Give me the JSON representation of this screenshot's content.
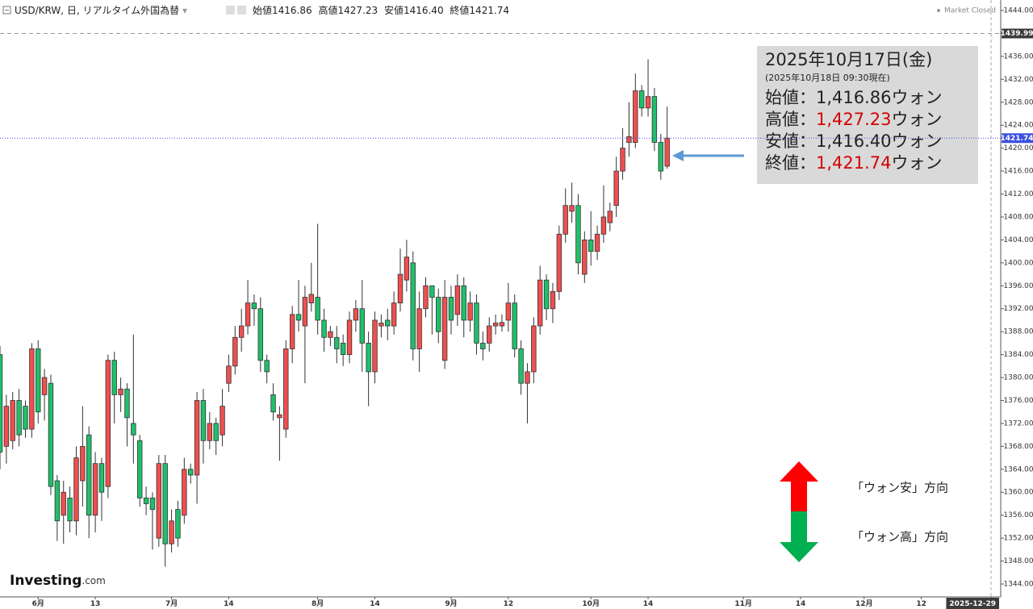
{
  "chart_data": {
    "type": "candlestick",
    "categories": [
      null,
      null,
      null,
      null,
      null,
      null,
      "6月",
      null,
      null,
      null,
      null,
      null,
      null,
      null,
      null,
      "13",
      null,
      null,
      null,
      null,
      null,
      null,
      null,
      null,
      null,
      null,
      null,
      "7月",
      null,
      null,
      null,
      null,
      null,
      null,
      null,
      null,
      "14",
      null,
      null,
      null,
      null,
      null,
      null,
      null,
      null,
      null,
      null,
      null,
      null,
      null,
      "8月",
      null,
      null,
      null,
      null,
      null,
      null,
      null,
      null,
      "14",
      null,
      null,
      null,
      null,
      null,
      null,
      null,
      null,
      null,
      null,
      null,
      "9月",
      null,
      null,
      null,
      null,
      null,
      null,
      null,
      null,
      "12",
      null,
      null,
      null,
      null,
      null,
      null,
      null,
      null,
      null,
      null,
      null,
      null,
      "10月",
      null,
      null,
      null,
      null,
      null,
      null,
      null,
      null,
      "14",
      null,
      null,
      null,
      null,
      null,
      null,
      null,
      null,
      null,
      null,
      null,
      null,
      null,
      null,
      "11月",
      null,
      null,
      null,
      null,
      null,
      null,
      null,
      null,
      "14",
      null,
      null,
      null,
      null,
      null,
      null,
      null,
      null,
      null,
      "12月",
      null,
      null,
      null,
      null,
      null,
      null,
      null,
      null,
      "12",
      null,
      null,
      null,
      null,
      null,
      null,
      null,
      null,
      null,
      null,
      "2025-12-29",
      null
    ],
    "open": [
      1384,
      1368,
      1369,
      1376,
      1375,
      1371,
      1385,
      1377,
      1379,
      1362,
      1356,
      1359,
      1355,
      1362,
      1370,
      1356,
      1365,
      1361,
      1383,
      1377,
      1378,
      1372,
      1369,
      1359,
      1359,
      1352,
      1365,
      1351,
      1357,
      1356,
      1364,
      1363,
      1376,
      1369,
      1372,
      1370,
      1379,
      1382,
      1387,
      1389,
      1393,
      1392,
      1383,
      1377,
      1373,
      1371,
      1385,
      1391,
      1389,
      1393,
      1394,
      1390,
      1387,
      1387,
      1386,
      1384,
      1390,
      1392,
      1386,
      1381,
      1389,
      1390,
      1389,
      1393,
      1397,
      1400,
      1385,
      1392,
      1396,
      1394,
      1383,
      1394,
      1391,
      1396,
      1390,
      1393,
      1386,
      1386,
      1389,
      1389,
      1390,
      1393,
      1385,
      1379,
      1381,
      1389,
      1397,
      1392,
      1395,
      1405,
      1409,
      1410,
      1398,
      1404,
      1402,
      1405,
      1407,
      1410,
      1416,
      1421,
      1421,
      1430,
      1427,
      1429,
      1421,
      1416.86,
      null,
      null,
      null,
      null,
      null,
      null,
      null,
      null,
      null,
      null,
      null,
      null,
      null,
      null,
      null,
      null,
      null,
      null,
      null,
      null,
      null,
      null,
      null,
      null,
      null,
      null,
      null,
      null,
      null,
      null,
      null,
      null,
      null,
      null,
      null,
      null,
      null,
      null,
      null,
      null,
      null,
      null,
      null,
      null,
      null,
      null,
      null,
      null,
      null,
      null,
      null,
      null
    ],
    "high": [
      1385.5,
      1377,
      1377.5,
      1378,
      1376,
      1386,
      1386.5,
      1381.5,
      1380.5,
      1363,
      1362,
      1361,
      1368,
      1375,
      1371.5,
      1367,
      1366,
      1384,
      1384.5,
      1380,
      1379,
      1387.5,
      1370,
      1361,
      1360,
      1366.5,
      1366.5,
      1357,
      1358.5,
      1366,
      1365,
      1377.5,
      1378,
      1374,
      1373,
      1378,
      1384,
      1389,
      1392,
      1397,
      1394.5,
      1394,
      1384,
      1379,
      1375,
      1386.5,
      1392.5,
      1397,
      1396,
      1400,
      1406.8,
      1392,
      1389,
      1389,
      1387.5,
      1391.5,
      1393.5,
      1397,
      1388,
      1391.5,
      1391,
      1392,
      1395,
      1402.5,
      1404,
      1402,
      1395,
      1397.5,
      1396,
      1395.5,
      1397,
      1396,
      1398,
      1397.5,
      1395,
      1394.5,
      1388,
      1390.5,
      1391,
      1391,
      1396.5,
      1394.5,
      1386.5,
      1382.5,
      1390.5,
      1399.5,
      1398,
      1396.5,
      1406.5,
      1413,
      1414,
      1412,
      1405.5,
      1409,
      1406.5,
      1413.5,
      1410.5,
      1418.5,
      1423.5,
      1428,
      1433,
      1431,
      1435.5,
      1430.5,
      1422.5,
      1427.23,
      null,
      null,
      null,
      null,
      null,
      null,
      null,
      null,
      null,
      null,
      null,
      null,
      null,
      null,
      null,
      null,
      null,
      null,
      null,
      null,
      null,
      null,
      null,
      null,
      null,
      null,
      null,
      null,
      null,
      null,
      null,
      null,
      null,
      null,
      null,
      null,
      null,
      null,
      null,
      null,
      null,
      null,
      null,
      null,
      null,
      null,
      null,
      null,
      null,
      null,
      null,
      null
    ],
    "low": [
      1364,
      1365,
      1367.5,
      1368,
      1369.5,
      1369.5,
      1372,
      1372.5,
      1359.5,
      1351.5,
      1351,
      1353,
      1352.5,
      1357.5,
      1352,
      1353,
      1355,
      1359,
      1372,
      1374,
      1368,
      1365,
      1357.5,
      1356,
      1350,
      1350.5,
      1347,
      1349.5,
      1350.5,
      1354.5,
      1361.5,
      1358,
      1365,
      1367.5,
      1366.5,
      1368,
      1377.5,
      1380.5,
      1384.5,
      1387.5,
      1389,
      1381,
      1379,
      1372.5,
      1365.5,
      1369.5,
      1382.5,
      1388,
      1379,
      1391.5,
      1387.5,
      1384.5,
      1385.5,
      1382.5,
      1382,
      1382.5,
      1388,
      1381,
      1375,
      1379,
      1387,
      1386.5,
      1387.5,
      1391.5,
      1395,
      1383,
      1381,
      1390.5,
      1387.5,
      1386,
      1381.5,
      1387.5,
      1389,
      1387,
      1388,
      1384,
      1383,
      1384.5,
      1387.5,
      1388,
      1388,
      1383.5,
      1377,
      1372,
      1379,
      1387.5,
      1390,
      1389.5,
      1393.5,
      1403.5,
      1407,
      1398,
      1396.5,
      1399.5,
      1400.5,
      1403.5,
      1405.5,
      1408,
      1414.5,
      1418.5,
      1420,
      1425.5,
      1425.5,
      1419.5,
      1414.5,
      1416.4,
      null,
      null,
      null,
      null,
      null,
      null,
      null,
      null,
      null,
      null,
      null,
      null,
      null,
      null,
      null,
      null,
      null,
      null,
      null,
      null,
      null,
      null,
      null,
      null,
      null,
      null,
      null,
      null,
      null,
      null,
      null,
      null,
      null,
      null,
      null,
      null,
      null,
      null,
      null,
      null,
      null,
      null,
      null,
      null,
      null,
      null,
      null,
      null,
      null,
      null,
      null,
      null
    ],
    "close": [
      1367,
      1375,
      1376,
      1370,
      1371,
      1385,
      1374,
      1380,
      1361,
      1355,
      1360,
      1355,
      1366,
      1368,
      1356,
      1365,
      1360,
      1383,
      1377,
      1378,
      1373,
      1370,
      1359,
      1358,
      1357,
      1365,
      1351,
      1355,
      1352,
      1364,
      1363,
      1376,
      1369,
      1372,
      1369,
      1375,
      1382,
      1387,
      1389,
      1393,
      1392,
      1383,
      1381,
      1374,
      1373.5,
      1385,
      1391,
      1390,
      1394,
      1394.5,
      1390,
      1387,
      1388,
      1385,
      1384,
      1390,
      1392,
      1386,
      1381,
      1390,
      1389.5,
      1389,
      1393,
      1398,
      1401,
      1385,
      1392,
      1396,
      1394,
      1388,
      1394,
      1390,
      1396,
      1390,
      1393,
      1386,
      1385,
      1389,
      1389.5,
      1389.6,
      1393,
      1385,
      1379,
      1381,
      1389,
      1397,
      1392,
      1395,
      1405,
      1410,
      1410,
      1400,
      1404,
      1402,
      1405,
      1408,
      1409,
      1416,
      1420,
      1422,
      1430,
      1427,
      1429,
      1421,
      1416,
      1421.74,
      null,
      null,
      null,
      null,
      null,
      null,
      null,
      null,
      null,
      null,
      null,
      null,
      null,
      null,
      null,
      null,
      null,
      null,
      null,
      null,
      null,
      null,
      null,
      null,
      null,
      null,
      null,
      null,
      null,
      null,
      null,
      null,
      null,
      null,
      null,
      null,
      null,
      null,
      null,
      null,
      null,
      null,
      null,
      null,
      null,
      null,
      null,
      null,
      null,
      null,
      null,
      null
    ],
    "up_color": "#ef4f4f",
    "down_color": "#1fc06a",
    "ylim": [
      1341.75,
      1445.83
    ],
    "yticks": [
      {
        "value": 1344,
        "label": "1344.00"
      },
      {
        "value": 1348,
        "label": "1348.00"
      },
      {
        "value": 1352,
        "label": "1352.00"
      },
      {
        "value": 1356,
        "label": "1356.00"
      },
      {
        "value": 1360,
        "label": "1360.00"
      },
      {
        "value": 1364,
        "label": "1364.00"
      },
      {
        "value": 1368,
        "label": "1368.00"
      },
      {
        "value": 1372,
        "label": "1372.00"
      },
      {
        "value": 1376,
        "label": "1376.00"
      },
      {
        "value": 1380,
        "label": "1380.00"
      },
      {
        "value": 1384,
        "label": "1384.00"
      },
      {
        "value": 1388,
        "label": "1388.00"
      },
      {
        "value": 1392,
        "label": "1392.00"
      },
      {
        "value": 1396,
        "label": "1396.00"
      },
      {
        "value": 1400,
        "label": "1400.00"
      },
      {
        "value": 1404,
        "label": "1404.00"
      },
      {
        "value": 1408,
        "label": "1408.00"
      },
      {
        "value": 1412,
        "label": "1412.00"
      },
      {
        "value": 1416,
        "label": "1416.00"
      },
      {
        "value": 1420,
        "label": "1420.00"
      },
      {
        "value": 1424,
        "label": "1424.00"
      },
      {
        "value": 1428,
        "label": "1428.00"
      },
      {
        "value": 1432,
        "label": "1432.00"
      },
      {
        "value": 1436,
        "label": "1436.00"
      },
      {
        "value": 1440,
        "label": "1440.00"
      },
      {
        "value": 1444,
        "label": "1444.00"
      }
    ],
    "price_lines": [
      {
        "value": 1439.99,
        "color": "#999999",
        "box_color": "#3a3a3a"
      }
    ],
    "last_price_color": "#3b4fe0",
    "grid": false
  },
  "header": {
    "symbol": "USD/KRW, 日, リアルタイム外国為替",
    "labels": [
      "始値",
      "高値",
      "安値",
      "終値"
    ],
    "values": [
      "1416.86",
      "1427.23",
      "1416.40",
      "1421.74"
    ],
    "status": "Market Closed"
  },
  "annotation": {
    "date": "2025年10月17日(金)",
    "asof": "(2025年10月18日 09:30現在)",
    "highlight_color": "#d40000",
    "rows": [
      {
        "label": "始値：",
        "value": "1,416.86",
        "unit": "ウォン",
        "highlight": false
      },
      {
        "label": "高値：",
        "value": "1,427.23",
        "unit": "ウォン",
        "highlight": true
      },
      {
        "label": "安値：",
        "value": "1,416.40",
        "unit": "ウォン",
        "highlight": false
      },
      {
        "label": "終値：",
        "value": "1,421.74",
        "unit": "ウォン",
        "highlight": true
      }
    ]
  },
  "direction_labels": [
    "「ウォン安」方向",
    "「ウォン高」方向"
  ],
  "logo": {
    "brand": "Investing",
    "suffix": ".com"
  }
}
